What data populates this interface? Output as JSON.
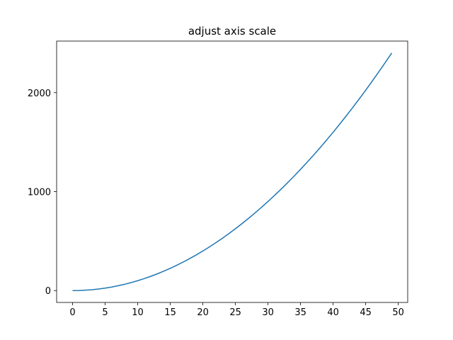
{
  "chart_data": {
    "type": "line",
    "title": "adjust axis scale",
    "x": [
      0,
      1,
      2,
      3,
      4,
      5,
      6,
      7,
      8,
      9,
      10,
      11,
      12,
      13,
      14,
      15,
      16,
      17,
      18,
      19,
      20,
      21,
      22,
      23,
      24,
      25,
      26,
      27,
      28,
      29,
      30,
      31,
      32,
      33,
      34,
      35,
      36,
      37,
      38,
      39,
      40,
      41,
      42,
      43,
      44,
      45,
      46,
      47,
      48,
      49
    ],
    "values": [
      0,
      1,
      4,
      9,
      16,
      25,
      36,
      49,
      64,
      81,
      100,
      121,
      144,
      169,
      196,
      225,
      256,
      289,
      324,
      361,
      400,
      441,
      484,
      529,
      576,
      625,
      676,
      729,
      784,
      841,
      900,
      961,
      1024,
      1089,
      1156,
      1225,
      1296,
      1369,
      1444,
      1521,
      1600,
      1681,
      1764,
      1849,
      1936,
      2025,
      2116,
      2209,
      2304,
      2401
    ],
    "color": "#1f77b4",
    "xlim": [
      -2.45,
      51.45
    ],
    "xticks": [
      0,
      5,
      10,
      15,
      20,
      25,
      30,
      35,
      40,
      45,
      50
    ],
    "ylim": [
      -120.05,
      2521.05
    ],
    "yticks": [
      0,
      1000,
      2000
    ]
  }
}
